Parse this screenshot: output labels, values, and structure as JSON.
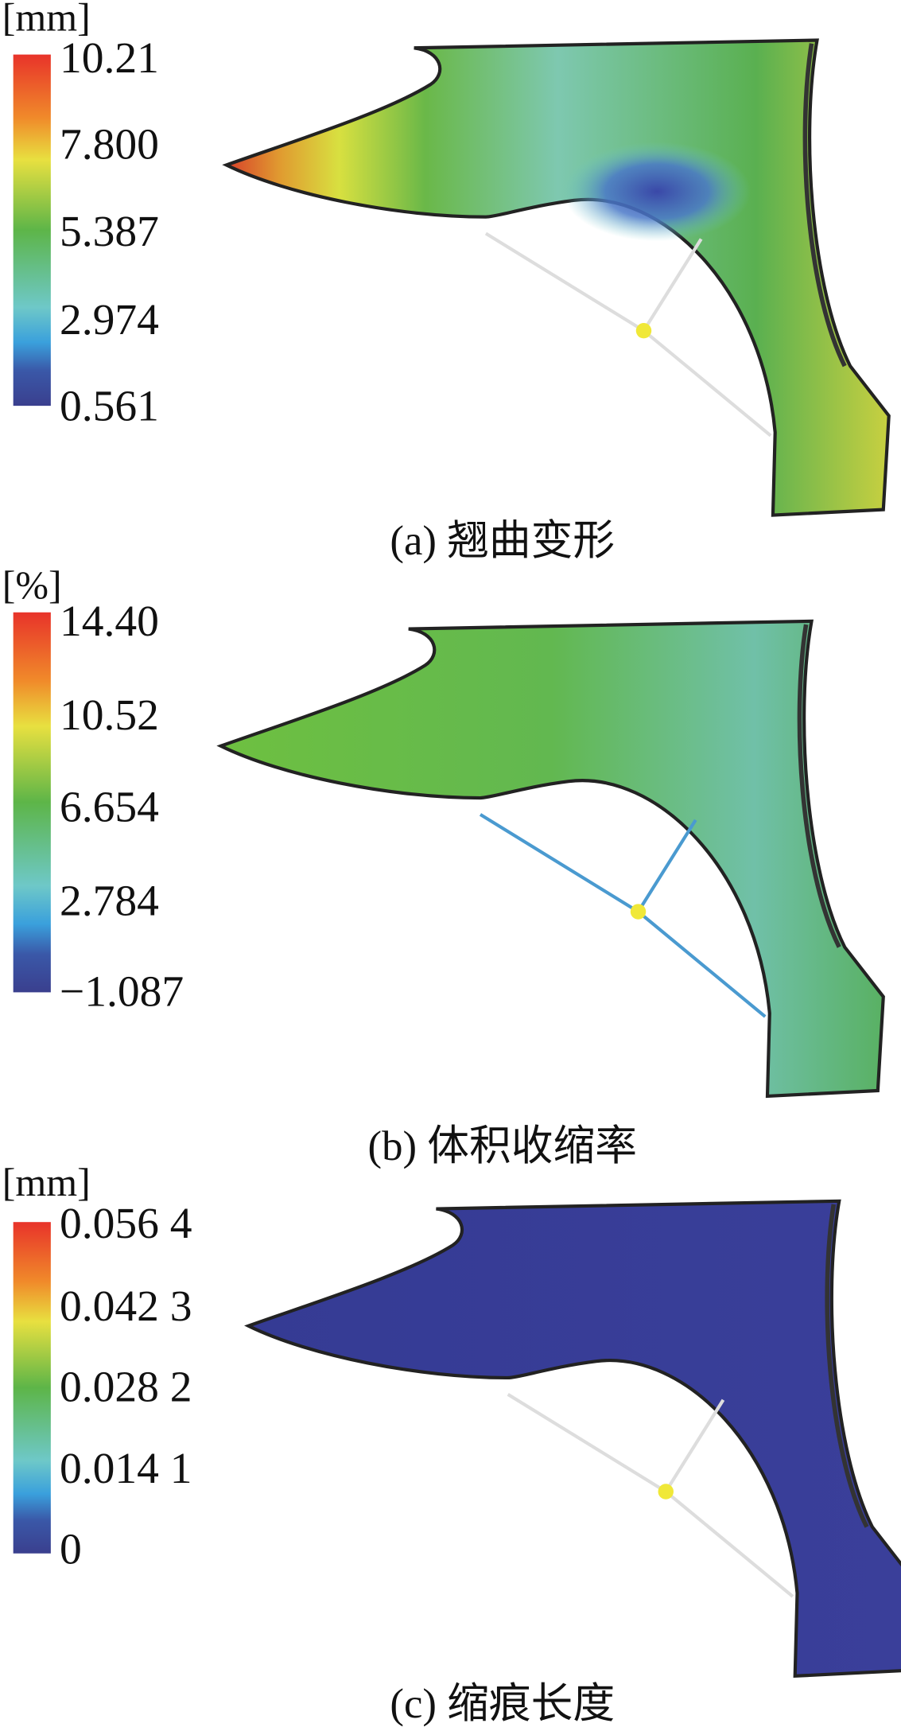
{
  "panels": [
    {
      "unit": "[mm]",
      "ticks": [
        "10.21",
        "7.800",
        "5.387",
        "2.974",
        "0.561"
      ],
      "caption": "(a) 翘曲变形"
    },
    {
      "unit": "[%]",
      "ticks": [
        "14.40",
        "10.52",
        "6.654",
        "2.784",
        "−1.087"
      ],
      "caption": "(b) 体积收缩率"
    },
    {
      "unit": "[mm]",
      "ticks": [
        "0.056 4",
        "0.042 3",
        "0.028 2",
        "0.014 1",
        "0"
      ],
      "caption": "(c) 缩痕长度"
    }
  ]
}
